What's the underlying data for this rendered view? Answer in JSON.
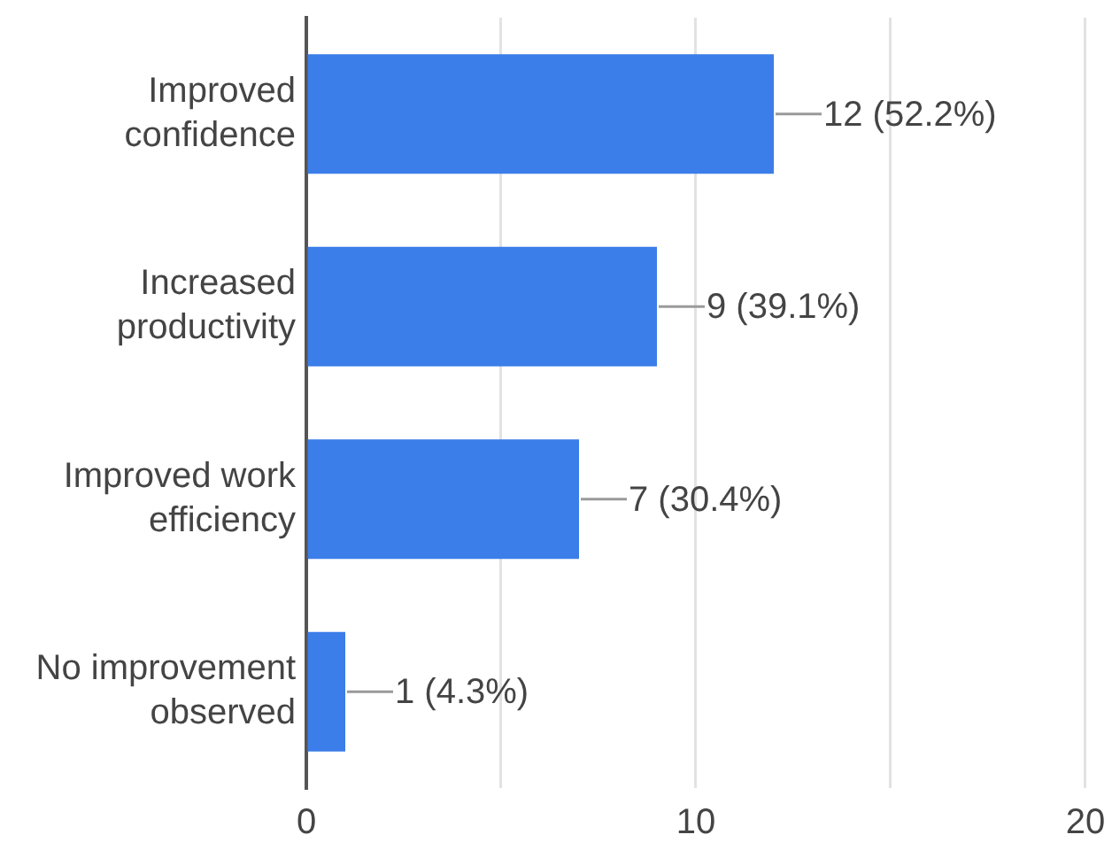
{
  "chart_data": {
    "type": "bar",
    "orientation": "horizontal",
    "categories": [
      "Improved confidence",
      "Increased productivity",
      "Improved work efficiency",
      "No improvement observed"
    ],
    "values": [
      12,
      9,
      7,
      1
    ],
    "color": "#3b7de9",
    "value_labels": [
      "12 (52.2%)",
      "9 (39.1%)",
      "7 (30.4%)",
      "1 (4.3%)"
    ],
    "xlim": [
      0,
      20
    ],
    "xticks": [
      0,
      {
        "value": 5,
        "label": null
      },
      10,
      {
        "value": 15,
        "label": null
      },
      20
    ],
    "grid": "x"
  }
}
